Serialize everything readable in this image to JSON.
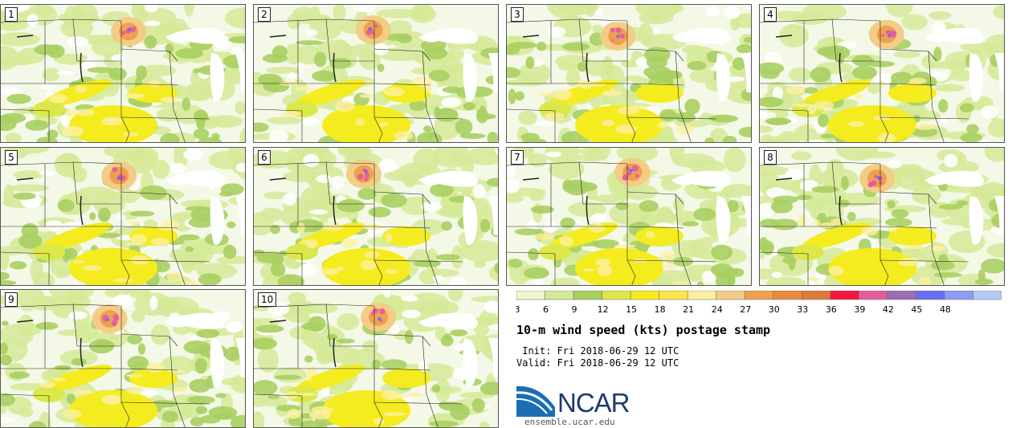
{
  "panels": [
    "1",
    "2",
    "3",
    "4",
    "5",
    "6",
    "7",
    "8",
    "9",
    "10"
  ],
  "title": "10-m wind speed (kts) postage stamp",
  "init": " Init: Fri 2018-06-29 12 UTC",
  "valid": "Valid: Fri 2018-06-29 12 UTC",
  "logo_text": "NCAR",
  "url": "ensemble.ucar.edu",
  "colorbar": {
    "ticks": [
      "3",
      "6",
      "9",
      "12",
      "15",
      "18",
      "21",
      "24",
      "27",
      "30",
      "33",
      "36",
      "39",
      "42",
      "45",
      "48"
    ],
    "colors": [
      "#f0f5cc",
      "#d5ea98",
      "#a8cf62",
      "#dce84a",
      "#f4ec1e",
      "#fbe54a",
      "#fdf0a0",
      "#f3cc87",
      "#eea04f",
      "#e88a3e",
      "#dc7a3b",
      "#f21842",
      "#e55e9c",
      "#9c6fb0",
      "#6a6ef0",
      "#8a9cf5",
      "#b6c9f6"
    ]
  }
}
